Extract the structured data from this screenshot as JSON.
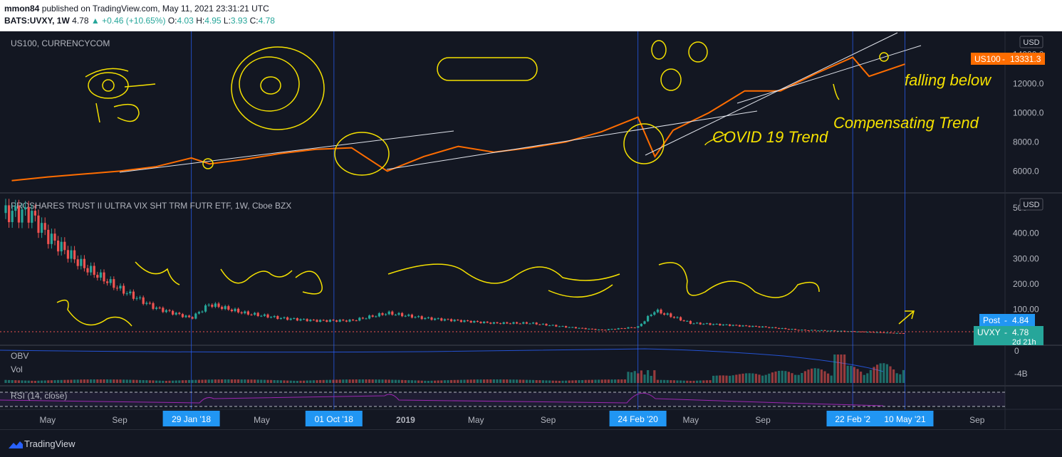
{
  "header": {
    "author": "mmon84",
    "published": "published on TradingView.com, May 11, 2021 23:31:21 UTC",
    "symbol": "BATS:UVXY, 1W",
    "last": "4.78",
    "change": "+0.46 (+10.65%)",
    "o_label": "O:",
    "o_value": "4.03",
    "h_label": "H:",
    "h_value": "4.95",
    "l_label": "L:",
    "l_value": "3.93",
    "c_label": "C:",
    "c_value": "4.78"
  },
  "footer": {
    "brand": "TradingView"
  },
  "colors": {
    "background": "#131722",
    "us100_line": "#ff6d00",
    "bull": "#26a69a",
    "bear": "#ef5350",
    "drawing": "#f5e100",
    "rsi": "#9c27b0",
    "obv": "#2962ff"
  },
  "chart_data": [
    {
      "type": "line",
      "title": "US100, CURRENCYCOM",
      "currency": "USD",
      "y_ticks": [
        "14000.0",
        "12000.0",
        "10000.0",
        "8000.0",
        "6000.0"
      ],
      "ylim": [
        4800,
        14800
      ],
      "x": [
        "2017-03",
        "2017-05",
        "2017-07",
        "2017-09",
        "2017-11",
        "2018-01",
        "2018-02",
        "2018-04",
        "2018-06",
        "2018-08",
        "2018-10",
        "2018-12",
        "2019-02",
        "2019-04",
        "2019-06",
        "2019-08",
        "2019-10",
        "2019-12",
        "2020-02",
        "2020-03",
        "2020-04",
        "2020-06",
        "2020-08",
        "2020-10",
        "2020-12",
        "2021-02",
        "2021-03",
        "2021-05"
      ],
      "values": [
        5350,
        5600,
        5800,
        6000,
        6300,
        6900,
        6500,
        6800,
        7200,
        7500,
        7600,
        6000,
        7000,
        7700,
        7300,
        7600,
        8000,
        8700,
        9700,
        7000,
        8800,
        10000,
        11500,
        11500,
        12700,
        13800,
        12500,
        13331
      ],
      "last_label": "US100",
      "last_value": "13331.3",
      "annotations": [
        "COVID 19 Trend",
        "falling below",
        "Compensating Trend"
      ]
    },
    {
      "type": "candlestick",
      "title": "PROSHARES TRUST II ULTRA VIX SHT TRM FUTR ETF, 1W, Cboe BZX",
      "currency": "USD",
      "y_ticks": [
        "500",
        "400.00",
        "300.00",
        "200.00",
        "100.00"
      ],
      "ylim": [
        0,
        520
      ],
      "x": [
        "2017-04",
        "2017-05",
        "2017-07",
        "2017-09",
        "2017-11",
        "2018-01",
        "2018-02",
        "2018-04",
        "2018-06",
        "2018-08",
        "2018-10",
        "2018-12",
        "2019-02",
        "2019-04",
        "2019-06",
        "2019-08",
        "2019-10",
        "2019-12",
        "2020-02",
        "2020-03",
        "2020-05",
        "2020-07",
        "2020-09",
        "2020-11",
        "2021-01",
        "2021-03",
        "2021-05"
      ],
      "values": [
        480,
        390,
        270,
        180,
        105,
        65,
        120,
        85,
        65,
        55,
        55,
        85,
        65,
        55,
        45,
        45,
        30,
        18,
        30,
        95,
        45,
        38,
        30,
        18,
        15,
        10,
        4.78
      ],
      "post_label": "Post",
      "post_value": "4.84",
      "last_label": "UVXY",
      "last_value": "4.78",
      "countdown": "2d 21h"
    },
    {
      "type": "bar",
      "title": "OBV",
      "subtitle": "Vol",
      "y_ticks": [
        "0",
        "-4B"
      ]
    },
    {
      "type": "line",
      "title": "RSI (14, close)"
    }
  ],
  "x_axis": {
    "labels": [
      "May",
      "Sep",
      "May",
      "2019",
      "May",
      "Sep",
      "202",
      "May",
      "Sep",
      "202",
      "Sep"
    ],
    "markers": [
      "29 Jan '18",
      "01 Oct '18",
      "24 Feb '20",
      "22 Feb '2",
      "10 May '21"
    ]
  }
}
